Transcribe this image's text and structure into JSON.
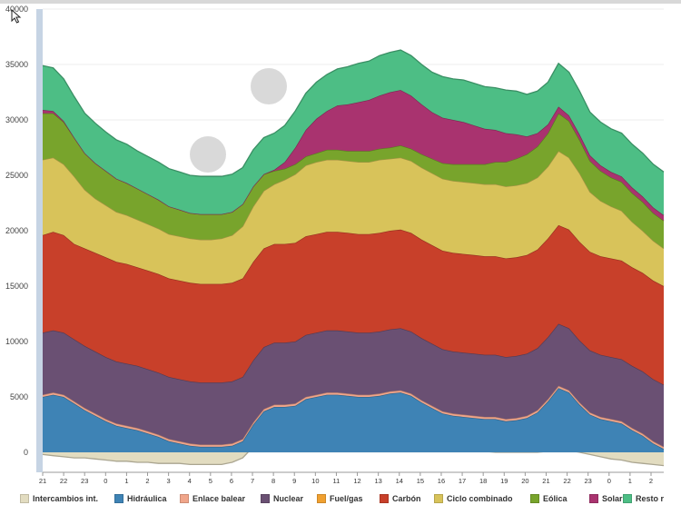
{
  "colors": {
    "Intercambios int.": "#e2dcc0",
    "Hidráulica": "#3e83b5",
    "Enlace balear": "#f0a58a",
    "Nuclear": "#6a5073",
    "Fuel/gas": "#f0a030",
    "Carbón": "#c8402a",
    "Ciclo combinado": "#d8c35a",
    "Eólica": "#78a42c",
    "Solar": "#a9336f",
    "Resto r": "#4dbe85"
  },
  "icons": {
    "cursor": "mouse-pointer-icon",
    "legend": "legend-swatch"
  },
  "chart_data": {
    "type": "area",
    "stacked": true,
    "title": "",
    "xlabel": "",
    "ylabel": "",
    "ylim": [
      -1500,
      40000
    ],
    "yticks": [
      0,
      5000,
      10000,
      15000,
      20000,
      25000,
      30000,
      35000,
      40000
    ],
    "ytick_labels": [
      "0",
      "5000",
      "10000",
      "15000",
      "20000",
      "25000",
      "30000",
      "35000",
      "40000"
    ],
    "x": [
      "21",
      "21:30",
      "22",
      "22:30",
      "23",
      "23:30",
      "0",
      "0:30",
      "1",
      "1:30",
      "2",
      "2:30",
      "3",
      "3:30",
      "4",
      "4:30",
      "5",
      "5:30",
      "6",
      "6:30",
      "7",
      "7:30",
      "8",
      "8:30",
      "9",
      "9:30",
      "10",
      "10:30",
      "11",
      "11:30",
      "12",
      "12:30",
      "13",
      "13:30",
      "14",
      "14:30",
      "15",
      "15:30",
      "16",
      "16:30",
      "17",
      "17:30",
      "18",
      "18:30",
      "19",
      "19:30",
      "20",
      "20:30",
      "21",
      "21:30",
      "22",
      "22:30",
      "23",
      "23:30",
      "0",
      "0:30",
      "1",
      "1:30",
      "2",
      "2:30"
    ],
    "xticks": [
      "21",
      "22",
      "23",
      "0",
      "1",
      "2",
      "3",
      "4",
      "5",
      "6",
      "7",
      "8",
      "9",
      "10",
      "11",
      "12",
      "13",
      "14",
      "15",
      "16",
      "17",
      "18",
      "19",
      "20",
      "21",
      "22",
      "23",
      "0",
      "1",
      "2"
    ],
    "grid": true,
    "legend_position": "bottom",
    "series": [
      {
        "name": "Intercambios int.",
        "values": [
          -200,
          -300,
          -400,
          -500,
          -500,
          -600,
          -700,
          -800,
          -800,
          -900,
          -900,
          -1000,
          -1000,
          -1000,
          -1100,
          -1100,
          -1100,
          -1100,
          -900,
          -500,
          500,
          700,
          800,
          800,
          700,
          600,
          500,
          400,
          300,
          300,
          200,
          200,
          200,
          200,
          200,
          200,
          200,
          100,
          100,
          100,
          100,
          100,
          100,
          0,
          0,
          0,
          0,
          0,
          100,
          300,
          200,
          0,
          -200,
          -400,
          -600,
          -700,
          -900,
          -1000,
          -1100,
          -1200
        ]
      },
      {
        "name": "Hidráulica",
        "values": [
          5000,
          5200,
          5000,
          4400,
          3800,
          3300,
          2800,
          2400,
          2200,
          2000,
          1700,
          1400,
          1000,
          800,
          600,
          500,
          500,
          500,
          600,
          1000,
          2500,
          3700,
          4100,
          4100,
          4200,
          4800,
          5000,
          5200,
          5200,
          5100,
          5000,
          5000,
          5100,
          5300,
          5400,
          5100,
          4500,
          4000,
          3500,
          3300,
          3200,
          3100,
          3000,
          3000,
          2800,
          2900,
          3100,
          3600,
          4600,
          5800,
          5400,
          4300,
          3400,
          3000,
          2800,
          2600,
          2000,
          1500,
          800,
          300
        ]
      },
      {
        "name": "Enlace balear",
        "values": [
          200,
          200,
          200,
          200,
          200,
          200,
          200,
          200,
          200,
          200,
          200,
          200,
          200,
          200,
          200,
          200,
          200,
          200,
          200,
          200,
          200,
          200,
          200,
          200,
          200,
          200,
          200,
          200,
          200,
          200,
          200,
          200,
          200,
          200,
          200,
          200,
          200,
          200,
          200,
          200,
          200,
          200,
          200,
          200,
          200,
          200,
          200,
          200,
          200,
          200,
          200,
          200,
          200,
          200,
          200,
          200,
          200,
          200,
          200,
          200
        ]
      },
      {
        "name": "Nuclear",
        "values": [
          5600,
          5600,
          5600,
          5600,
          5600,
          5600,
          5600,
          5600,
          5600,
          5600,
          5600,
          5600,
          5600,
          5600,
          5600,
          5600,
          5600,
          5600,
          5600,
          5600,
          5600,
          5600,
          5600,
          5600,
          5600,
          5600,
          5600,
          5600,
          5600,
          5600,
          5600,
          5600,
          5600,
          5600,
          5600,
          5600,
          5600,
          5600,
          5600,
          5600,
          5600,
          5600,
          5600,
          5600,
          5600,
          5600,
          5600,
          5600,
          5600,
          5600,
          5600,
          5600,
          5600,
          5600,
          5600,
          5600,
          5600,
          5600,
          5600,
          5600
        ]
      },
      {
        "name": "Fuel/gas",
        "values": [
          0,
          0,
          0,
          0,
          0,
          0,
          0,
          0,
          0,
          0,
          0,
          0,
          0,
          0,
          0,
          0,
          0,
          0,
          0,
          0,
          0,
          0,
          0,
          0,
          0,
          0,
          0,
          0,
          0,
          0,
          0,
          0,
          0,
          0,
          0,
          0,
          0,
          0,
          0,
          0,
          0,
          0,
          0,
          0,
          0,
          0,
          0,
          0,
          0,
          0,
          0,
          0,
          0,
          0,
          0,
          0,
          0,
          0,
          0,
          0
        ]
      },
      {
        "name": "Carbón",
        "values": [
          8800,
          8900,
          8800,
          8600,
          8800,
          8900,
          9000,
          9000,
          9000,
          8900,
          8900,
          8900,
          8900,
          8900,
          8900,
          8900,
          8900,
          8900,
          8900,
          8900,
          8900,
          8900,
          8900,
          8900,
          8900,
          8900,
          8900,
          8900,
          8900,
          8900,
          8900,
          8900,
          8900,
          8900,
          8900,
          8900,
          8900,
          8900,
          8900,
          8900,
          8900,
          8900,
          8900,
          8900,
          8900,
          8900,
          8900,
          8900,
          8900,
          8900,
          8900,
          8900,
          8900,
          8900,
          8900,
          8900,
          8900,
          8900,
          8900,
          8900
        ]
      },
      {
        "name": "Ciclo combinado",
        "values": [
          6800,
          6700,
          6400,
          6100,
          5300,
          4900,
          4700,
          4500,
          4400,
          4300,
          4200,
          4100,
          4000,
          4000,
          4000,
          4000,
          4000,
          4100,
          4300,
          4700,
          5000,
          5200,
          5400,
          5800,
          6200,
          6400,
          6500,
          6500,
          6500,
          6500,
          6500,
          6500,
          6600,
          6500,
          6500,
          6500,
          6500,
          6500,
          6500,
          6500,
          6500,
          6500,
          6500,
          6500,
          6500,
          6500,
          6500,
          6500,
          6500,
          6700,
          6500,
          6200,
          5400,
          5000,
          4700,
          4500,
          4100,
          3800,
          3600,
          3400
        ]
      },
      {
        "name": "Eólica",
        "values": [
          4200,
          4000,
          3800,
          3500,
          3300,
          3200,
          3100,
          3000,
          2900,
          2800,
          2700,
          2600,
          2500,
          2400,
          2300,
          2300,
          2300,
          2200,
          2100,
          2000,
          1800,
          1500,
          1200,
          1000,
          900,
          800,
          800,
          900,
          900,
          900,
          1000,
          1000,
          1000,
          1000,
          1100,
          1100,
          1200,
          1300,
          1400,
          1500,
          1600,
          1700,
          1800,
          2000,
          2200,
          2400,
          2600,
          2800,
          3000,
          3400,
          3300,
          3000,
          2800,
          2700,
          2600,
          2600,
          2600,
          2600,
          2500,
          2500
        ]
      },
      {
        "name": "Solar",
        "values": [
          300,
          200,
          100,
          0,
          0,
          0,
          0,
          0,
          0,
          0,
          0,
          0,
          0,
          0,
          0,
          0,
          0,
          0,
          0,
          0,
          0,
          0,
          100,
          600,
          1500,
          2400,
          3100,
          3500,
          4000,
          4200,
          4400,
          4600,
          4800,
          5000,
          5000,
          4800,
          4500,
          4200,
          4100,
          4000,
          3800,
          3500,
          3200,
          2900,
          2600,
          2200,
          1600,
          1200,
          800,
          600,
          500,
          500,
          500,
          500,
          500,
          500,
          500,
          500,
          500,
          500
        ]
      },
      {
        "name": "Resto r",
        "values": [
          4000,
          3900,
          3800,
          3700,
          3600,
          3600,
          3500,
          3500,
          3500,
          3400,
          3400,
          3400,
          3400,
          3400,
          3400,
          3400,
          3400,
          3400,
          3400,
          3300,
          3300,
          3300,
          3300,
          3300,
          3300,
          3300,
          3300,
          3300,
          3300,
          3400,
          3500,
          3500,
          3600,
          3600,
          3600,
          3600,
          3600,
          3600,
          3700,
          3700,
          3800,
          3800,
          3800,
          3800,
          3900,
          3900,
          3800,
          3800,
          3800,
          3900,
          3900,
          3900,
          3900,
          3900,
          3900,
          3900,
          3900,
          3900,
          3900,
          3900
        ]
      }
    ]
  }
}
